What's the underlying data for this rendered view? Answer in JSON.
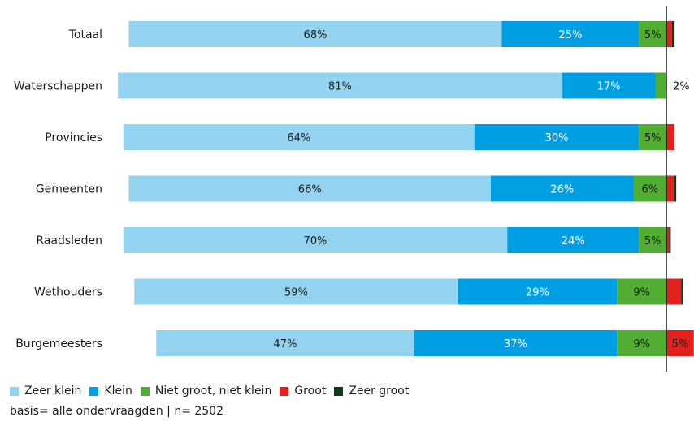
{
  "chart_data": {
    "type": "bar",
    "orientation": "horizontal",
    "stacked": true,
    "categories": [
      "Totaal",
      "Waterschappen",
      "Provincies",
      "Gemeenten",
      "Raadsleden",
      "Wethouders",
      "Burgemeesters"
    ],
    "series": [
      {
        "name": "Zeer klein",
        "color": "#94d3ef",
        "values": [
          68,
          81,
          64,
          66,
          70,
          59,
          47
        ],
        "labels": [
          "68%",
          "81%",
          "64%",
          "66%",
          "70%",
          "59%",
          "47%"
        ]
      },
      {
        "name": "Klein",
        "color": "#009fe3",
        "values": [
          25,
          17,
          30,
          26,
          24,
          29,
          37
        ],
        "labels": [
          "25%",
          "17%",
          "30%",
          "26%",
          "24%",
          "29%",
          "37%"
        ]
      },
      {
        "name": "Niet groot, niet klein",
        "color": "#52ae32",
        "values": [
          5,
          2,
          5,
          6,
          5,
          9,
          9
        ],
        "labels": [
          "5%",
          "2%",
          "5%",
          "6%",
          "5%",
          "9%",
          "9%"
        ]
      },
      {
        "name": "Groot",
        "color": "#e2211c",
        "values": [
          1,
          0,
          1.5,
          1.3,
          0.5,
          2.7,
          5
        ],
        "labels": [
          "",
          "",
          "",
          "",
          "",
          "",
          "5%"
        ]
      },
      {
        "name": "Zeer groot",
        "color": "#0b3d1a",
        "values": [
          0.5,
          0,
          0,
          0.5,
          0.3,
          0.3,
          0
        ],
        "labels": [
          "",
          "",
          "",
          "",
          "",
          "",
          ""
        ]
      }
    ],
    "title": "",
    "xlabel": "",
    "ylabel": "",
    "grid": false,
    "legend_position": "bottom-left",
    "reference_line": "divides small/neutral from large"
  },
  "legend": {
    "items": [
      {
        "label": "Zeer klein",
        "color": "#94d3ef"
      },
      {
        "label": "Klein",
        "color": "#009fe3"
      },
      {
        "label": "Niet groot, niet klein",
        "color": "#52ae32"
      },
      {
        "label": "Groot",
        "color": "#e2211c"
      },
      {
        "label": "Zeer groot",
        "color": "#0b3d1a"
      }
    ]
  },
  "footnote": "basis= alle ondervraagden | n= 2502"
}
